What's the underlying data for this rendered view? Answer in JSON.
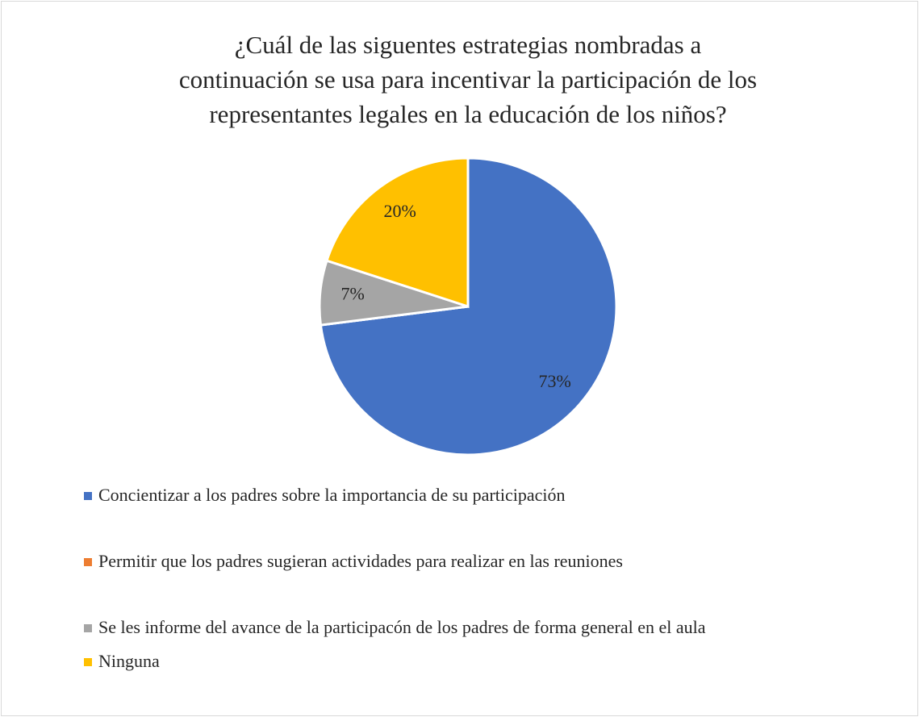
{
  "chart_data": {
    "type": "pie",
    "title": "¿Cuál de las siguentes estrategias nombradas a\ncontinuación se usa para incentivar la participación de los\nrepresentantes legales en la educación de los niños?",
    "categories": [
      "Concientizar a los padres sobre la importancia de su participación",
      "Permitir que los padres sugieran actividades para realizar en las reuniones",
      "Se les informe del avance de la participacón de los padres de forma general en el aula",
      "Ninguna"
    ],
    "values": [
      73,
      0,
      7,
      20
    ],
    "value_labels": [
      "73%",
      null,
      "7%",
      "20%"
    ],
    "colors": [
      "#4472c4",
      "#ed7d31",
      "#a5a5a5",
      "#ffc000"
    ],
    "legend": "bottom"
  }
}
